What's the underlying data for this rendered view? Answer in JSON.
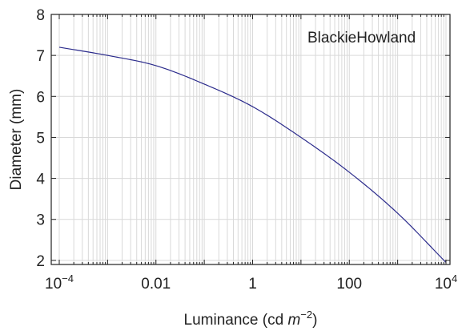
{
  "chart_data": {
    "type": "line",
    "xscale": "log",
    "xlim": [
      0.0001,
      10000
    ],
    "ylim": [
      1.9,
      8
    ],
    "grid": true,
    "xlabel": {
      "text": "Luminance (cd ",
      "unit_italic": "m",
      "exponent": "−2",
      "close": ")"
    },
    "ylabel": "Diameter (mm)",
    "x_ticks": [
      {
        "value": 0.0001,
        "base": "10",
        "exp": "−4"
      },
      {
        "value": 0.01,
        "label": "0.01"
      },
      {
        "value": 1,
        "label": "1"
      },
      {
        "value": 100,
        "label": "100"
      },
      {
        "value": 10000,
        "base": "10",
        "exp": "4"
      }
    ],
    "y_ticks": [
      2,
      3,
      4,
      5,
      6,
      7,
      8
    ],
    "series": [
      {
        "name": "BlackieHowland",
        "color": "#2b2b8c",
        "x": [
          0.0001,
          0.001,
          0.01,
          0.1,
          1,
          10,
          100,
          1000,
          10000
        ],
        "y": [
          7.2,
          7.0,
          6.75,
          6.3,
          5.75,
          5.0,
          4.15,
          3.15,
          1.95
        ]
      }
    ]
  }
}
